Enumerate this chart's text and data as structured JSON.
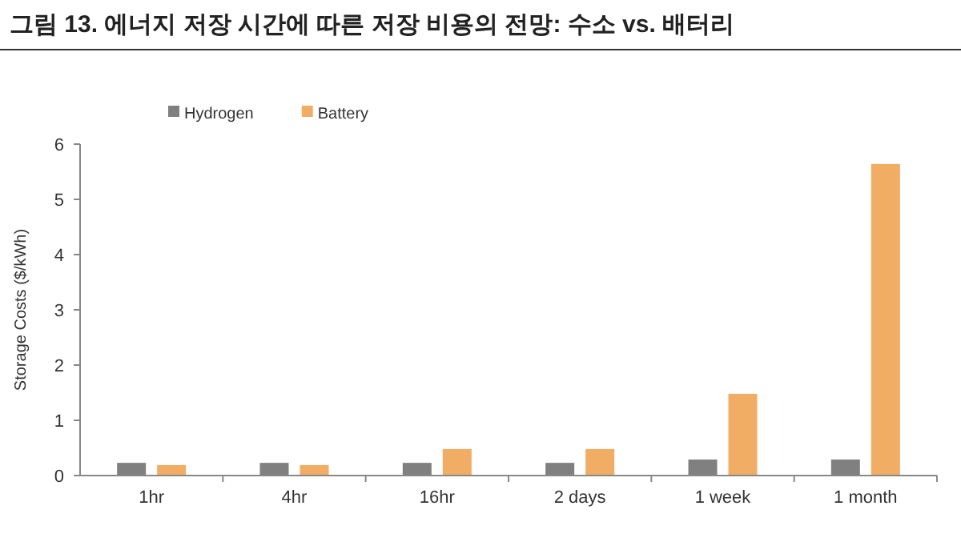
{
  "chart_data": {
    "type": "bar",
    "title": "그림 13. 에너지 저장 시간에 따른 저장 비용의 전망: 수소 vs. 배터리",
    "ylabel": "Storage Costs ($/kWh)",
    "categories": [
      "1hr",
      "4hr",
      "16hr",
      "2 days",
      "1 week",
      "1 month"
    ],
    "series": [
      {
        "name": "Hydrogen",
        "color": "#808080",
        "values": [
          0.23,
          0.23,
          0.23,
          0.23,
          0.29,
          0.29
        ]
      },
      {
        "name": "Battery",
        "color": "#f0ad63",
        "values": [
          0.19,
          0.19,
          0.48,
          0.48,
          1.48,
          5.64
        ]
      }
    ],
    "ylim": [
      0,
      6
    ],
    "yticks": [
      0,
      1,
      2,
      3,
      4,
      5,
      6
    ],
    "legend": "top"
  }
}
